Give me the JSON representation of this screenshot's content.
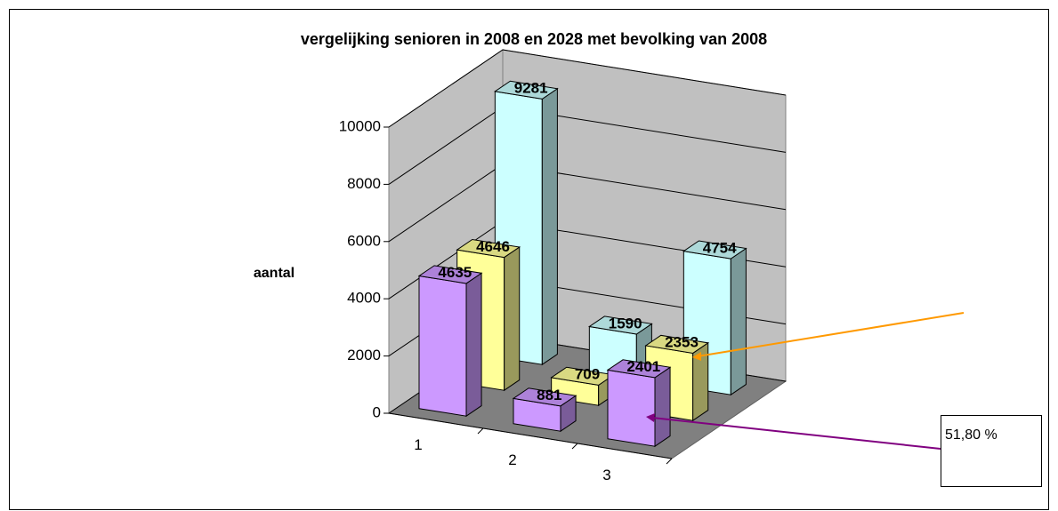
{
  "chart_data": {
    "type": "bar3d",
    "title": "vergelijking senioren in 2008 en 2028 met bevolking van 2008",
    "ylabel": "aantal",
    "categories": [
      "1",
      "2",
      "3"
    ],
    "series": [
      {
        "color": "#cc99ff",
        "values": [
          4635,
          881,
          2401
        ]
      },
      {
        "color": "#ffff99",
        "values": [
          4646,
          709,
          2353
        ]
      },
      {
        "color": "#ccffff",
        "values": [
          9281,
          1590,
          4754
        ]
      }
    ],
    "ylim": [
      0,
      10000
    ],
    "yticks": [
      0,
      2000,
      4000,
      6000,
      8000,
      10000
    ],
    "grid": true,
    "annotation": "51,80 %"
  }
}
